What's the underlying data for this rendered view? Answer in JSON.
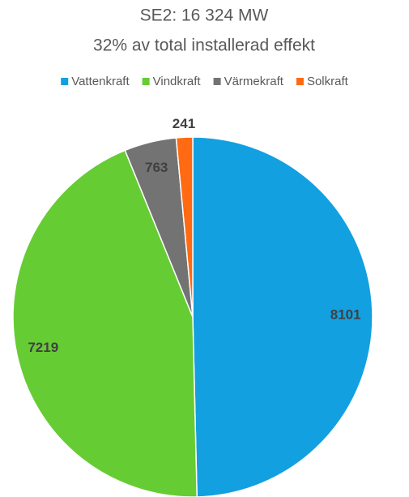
{
  "chart_data": {
    "type": "pie",
    "title": "SE2: 16 324 MW",
    "subtitle": "32% av total installerad effekt",
    "categories": [
      "Vattenkraft",
      "Vindkraft",
      "Värmekraft",
      "Solkraft"
    ],
    "values": [
      8101,
      7219,
      763,
      241
    ],
    "colors": [
      "#12a0e0",
      "#66cc33",
      "#737373",
      "#ff6a13"
    ],
    "legend": "top"
  }
}
